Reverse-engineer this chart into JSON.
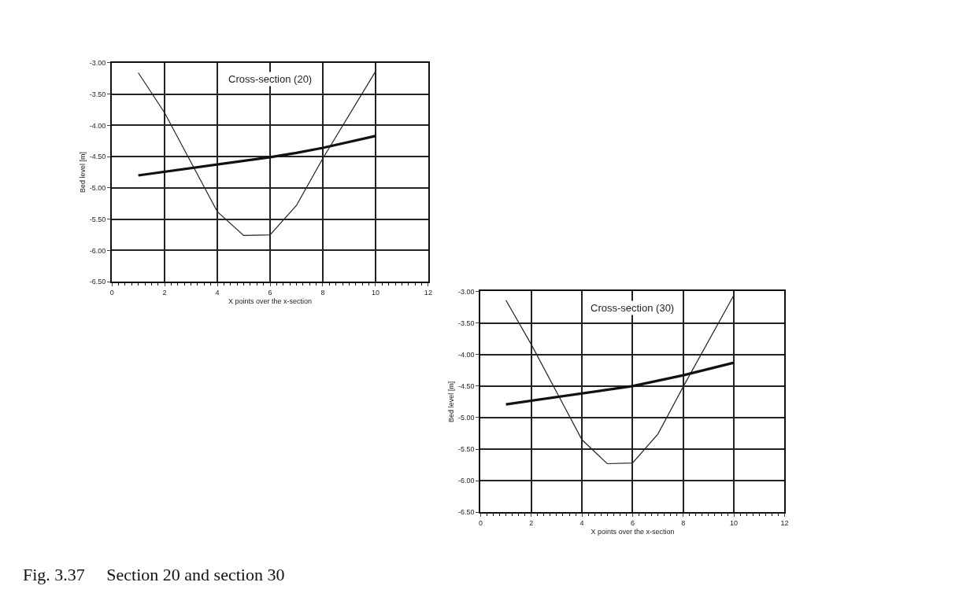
{
  "chart_data": [
    {
      "type": "line",
      "title": "Cross-section (20)",
      "xlabel": "X points over the x-section",
      "ylabel": "Bed level [m]",
      "xlim": [
        0,
        12
      ],
      "xticks": [
        0,
        2,
        4,
        6,
        8,
        10,
        12
      ],
      "ylim": [
        -6.5,
        -3.0
      ],
      "yticks": [
        {
          "value": -3.0,
          "label": "-3.00"
        },
        {
          "value": -3.5,
          "label": "-3.50"
        },
        {
          "value": -4.0,
          "label": "-4.00"
        },
        {
          "value": -4.5,
          "label": "-4.50"
        },
        {
          "value": -5.0,
          "label": "-5.00"
        },
        {
          "value": -5.5,
          "label": "-5.50"
        },
        {
          "value": -6.0,
          "label": "-6.00"
        },
        {
          "value": -6.5,
          "label": "-6.50"
        }
      ],
      "grid": true,
      "marker": "none",
      "line_style": "solid",
      "series": [
        {
          "color": "#222222",
          "x": [
            1,
            2,
            4,
            5,
            6,
            7,
            8,
            10
          ],
          "values": [
            -3.16,
            -3.8,
            -5.38,
            -5.76,
            -5.75,
            -5.28,
            -4.53,
            -3.14
          ]
        },
        {
          "color": "#111111",
          "x": [
            1,
            6,
            7,
            8,
            10
          ],
          "values": [
            -4.8,
            -4.51,
            -4.44,
            -4.36,
            -4.17
          ]
        }
      ],
      "annotations": [
        "Fig. 3.37     Section 20 and section 30"
      ]
    },
    {
      "type": "line",
      "title": "Cross-section (30)",
      "xlabel": "X points over the x-section",
      "ylabel": "Bed level [m]",
      "xlim": [
        0,
        12
      ],
      "xticks": [
        0,
        2,
        4,
        6,
        8,
        10,
        12
      ],
      "ylim": [
        -6.5,
        -3.0
      ],
      "yticks": [
        {
          "value": -3.0,
          "label": "-3.00"
        },
        {
          "value": -3.5,
          "label": "-3.50"
        },
        {
          "value": -4.0,
          "label": "-4.00"
        },
        {
          "value": -4.5,
          "label": "-4.50"
        },
        {
          "value": -5.0,
          "label": "-5.00"
        },
        {
          "value": -5.5,
          "label": "-5.50"
        },
        {
          "value": -6.0,
          "label": "-6.00"
        },
        {
          "value": -6.5,
          "label": "-6.50"
        }
      ],
      "grid": true,
      "marker": "none",
      "line_style": "solid",
      "series": [
        {
          "color": "#222222",
          "x": [
            1,
            2,
            4,
            5,
            6,
            7,
            8,
            10
          ],
          "values": [
            -3.14,
            -3.84,
            -5.35,
            -5.73,
            -5.72,
            -5.26,
            -4.51,
            -3.06
          ]
        },
        {
          "color": "#111111",
          "x": [
            1,
            6,
            8,
            10
          ],
          "values": [
            -4.79,
            -4.5,
            -4.33,
            -4.13
          ]
        }
      ]
    }
  ]
}
